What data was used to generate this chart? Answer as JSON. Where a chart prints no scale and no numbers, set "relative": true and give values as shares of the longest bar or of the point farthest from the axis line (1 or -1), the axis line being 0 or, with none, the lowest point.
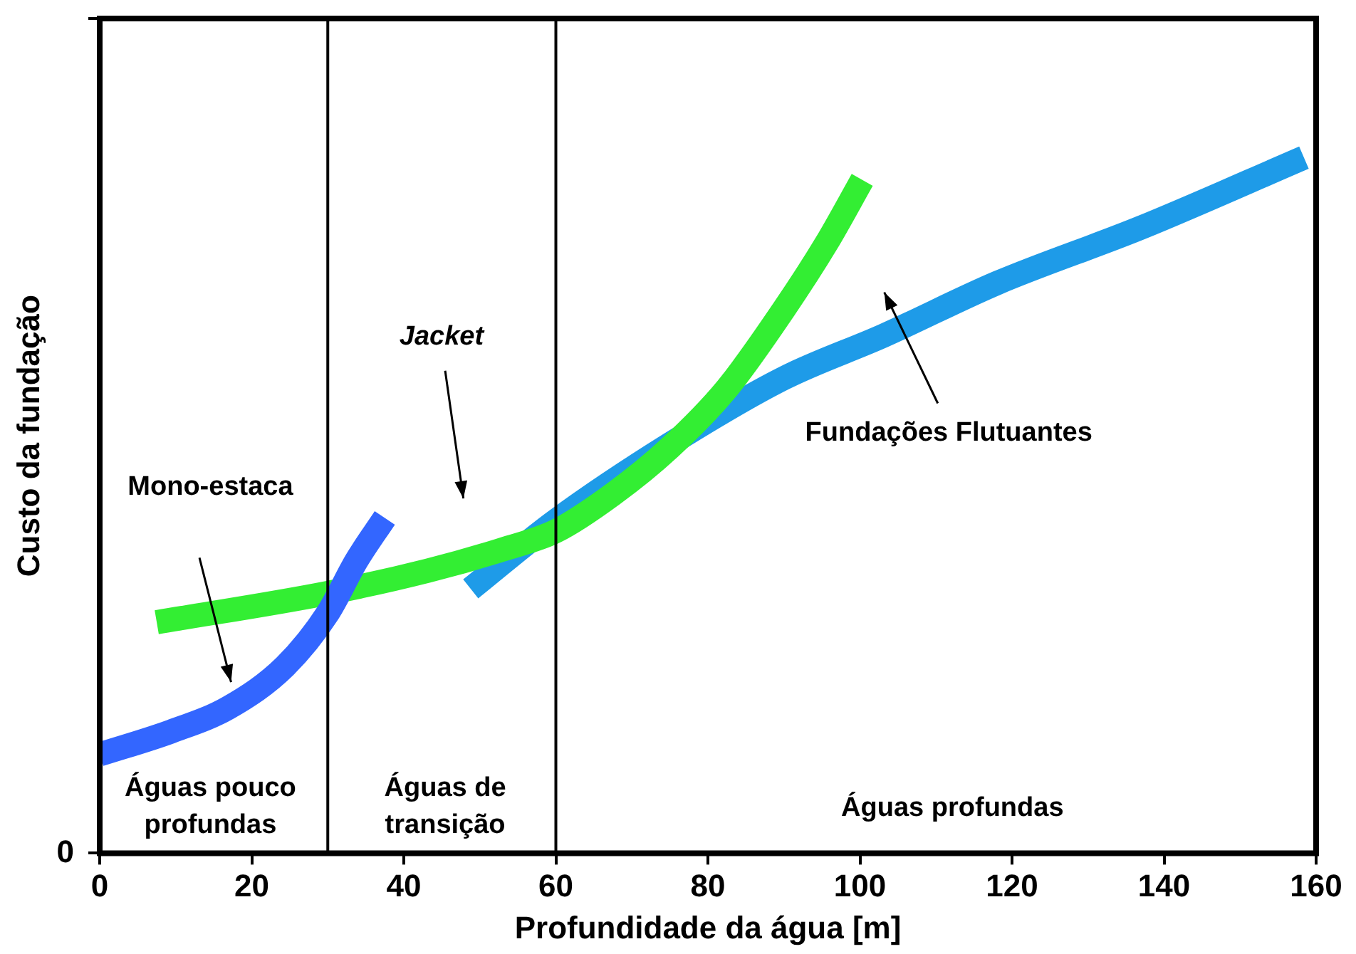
{
  "chart_data": {
    "type": "line",
    "relative": true,
    "xlabel": "Profundidade da água [m]",
    "ylabel": "Custo da fundação",
    "xlim": [
      0,
      160
    ],
    "xticks": [
      0,
      20,
      40,
      60,
      80,
      100,
      120,
      140,
      160
    ],
    "legend": false,
    "marker": "none",
    "grid": false,
    "series": [
      {
        "color": "#3366ff",
        "x": [
          0,
          9.4,
          16.9,
          24.4,
          30,
          33.8,
          37.5
        ],
        "values": [
          0.142,
          0.175,
          0.209,
          0.269,
          0.345,
          0.421,
          0.482
        ]
      },
      {
        "color": "#33ee33",
        "x": [
          7.5,
          30,
          43.1,
          52.5,
          60,
          67.5,
          75,
          82.5,
          90,
          95.6,
          100.3
        ],
        "values": [
          0.332,
          0.374,
          0.406,
          0.435,
          0.463,
          0.516,
          0.583,
          0.668,
          0.782,
          0.877,
          0.968
        ]
      },
      {
        "color": "#1e9be8",
        "x": [
          48.8,
          60,
          75,
          90,
          103.1,
          118.1,
          136.9,
          158.4
        ],
        "values": [
          0.38,
          0.478,
          0.588,
          0.683,
          0.744,
          0.82,
          0.899,
          1
        ]
      }
    ],
    "ref_lines": [
      {
        "axis": "x",
        "value": 30,
        "color": "#000000"
      },
      {
        "axis": "x",
        "value": 60,
        "color": "#000000"
      }
    ],
    "annotations": [
      "Mono-estaca",
      "Jacket",
      "Fundações Flutuantes",
      "Águas pouco profundas",
      "Águas de transição",
      "Águas profundas",
      "0"
    ]
  }
}
